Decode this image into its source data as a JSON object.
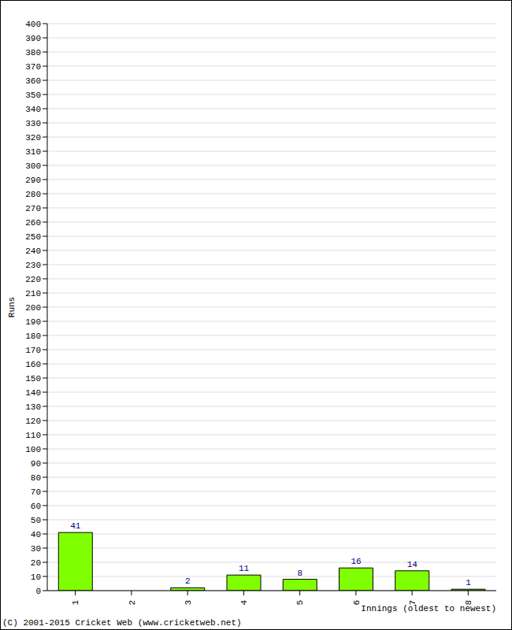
{
  "chart_data": {
    "type": "bar",
    "categories": [
      "1",
      "2",
      "3",
      "4",
      "5",
      "6",
      "7",
      "8"
    ],
    "values": [
      41,
      0,
      2,
      11,
      8,
      16,
      14,
      1
    ],
    "color": "#80ff00",
    "ylim": [
      0,
      400
    ],
    "yticks": [
      0,
      10,
      20,
      30,
      40,
      50,
      60,
      70,
      80,
      90,
      100,
      110,
      120,
      130,
      140,
      150,
      160,
      170,
      180,
      190,
      200,
      210,
      220,
      230,
      240,
      250,
      260,
      270,
      280,
      290,
      300,
      310,
      320,
      330,
      340,
      350,
      360,
      370,
      380,
      390,
      400
    ],
    "grid": true,
    "data_labels": true,
    "y_label": "Runs",
    "x_label": "Innings (oldest to newest)",
    "annotation": "(C) 2001-2015 Cricket Web (www.cricketweb.net)"
  }
}
